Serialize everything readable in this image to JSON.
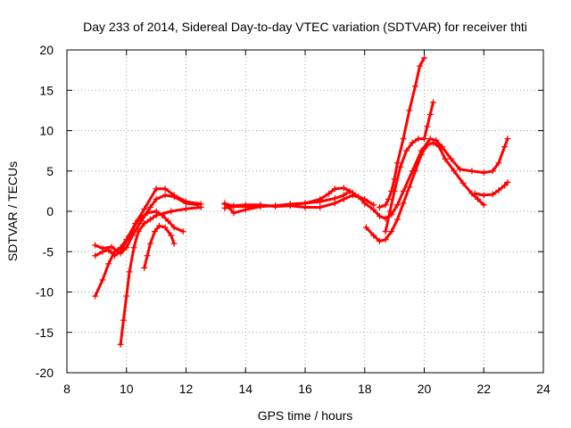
{
  "chart_data": {
    "type": "scatter",
    "title": "Day 233 of 2014, Sidereal Day-to-day VTEC variation (SDTVAR) for receiver thti",
    "xlabel": "GPS time / hours",
    "ylabel": "SDTVAR / TECUs",
    "xlim": [
      8,
      24
    ],
    "ylim": [
      -20,
      20
    ],
    "xticks": [
      "8",
      "10",
      "12",
      "14",
      "16",
      "18",
      "20",
      "22",
      "24"
    ],
    "yticks": [
      "20",
      "15",
      "10",
      "5",
      "0",
      "-5",
      "-10",
      "-15",
      "-20"
    ],
    "grid": true,
    "marker": "+",
    "color": "#ff0000",
    "series": [
      {
        "values": [
          [
            8.95,
            -4.2
          ],
          [
            9.2,
            -4.6
          ],
          [
            9.5,
            -4.4
          ],
          [
            9.8,
            -5.2
          ],
          [
            10.0,
            -4.5
          ],
          [
            10.2,
            -3.0
          ],
          [
            10.5,
            -1.2
          ],
          [
            10.8,
            0.5
          ],
          [
            11.0,
            1.5
          ],
          [
            11.3,
            2.0
          ],
          [
            11.6,
            1.8
          ],
          [
            12.0,
            1.0
          ],
          [
            12.4,
            0.8
          ]
        ]
      },
      {
        "values": [
          [
            8.95,
            -10.5
          ],
          [
            9.2,
            -8.5
          ],
          [
            9.4,
            -6.5
          ],
          [
            9.6,
            -5.0
          ],
          [
            9.8,
            -4.5
          ],
          [
            10.0,
            -3.5
          ],
          [
            10.3,
            -1.5
          ],
          [
            10.6,
            0.3
          ],
          [
            11.0,
            2.8
          ],
          [
            11.3,
            2.8
          ],
          [
            11.6,
            2.0
          ],
          [
            12.0,
            1.2
          ],
          [
            12.5,
            0.9
          ]
        ]
      },
      {
        "values": [
          [
            8.95,
            -5.5
          ],
          [
            9.2,
            -5.0
          ],
          [
            9.4,
            -4.8
          ],
          [
            9.6,
            -5.5
          ],
          [
            9.8,
            -5.0
          ],
          [
            10.1,
            -3.0
          ],
          [
            10.4,
            -1.0
          ],
          [
            10.7,
            -0.2
          ],
          [
            11.0,
            0.0
          ],
          [
            11.2,
            -0.5
          ],
          [
            11.4,
            -1.2
          ],
          [
            11.6,
            -2.0
          ],
          [
            11.9,
            -2.5
          ]
        ]
      },
      {
        "values": [
          [
            9.8,
            -16.5
          ],
          [
            9.9,
            -13.5
          ],
          [
            10.0,
            -10.5
          ],
          [
            10.1,
            -7.5
          ],
          [
            10.25,
            -4.5
          ],
          [
            10.4,
            -2.5
          ],
          [
            10.6,
            -1.5
          ],
          [
            10.8,
            -1.0
          ],
          [
            11.0,
            -0.5
          ],
          [
            11.5,
            0.0
          ],
          [
            12.0,
            0.3
          ],
          [
            12.5,
            0.5
          ]
        ]
      },
      {
        "values": [
          [
            10.6,
            -7.0
          ],
          [
            10.7,
            -5.5
          ],
          [
            10.8,
            -4.0
          ],
          [
            10.95,
            -2.5
          ],
          [
            11.1,
            -1.8
          ],
          [
            11.3,
            -2.0
          ],
          [
            11.5,
            -3.0
          ],
          [
            11.6,
            -4.0
          ]
        ]
      },
      {
        "values": [
          [
            13.3,
            0.4
          ],
          [
            13.6,
            0.6
          ],
          [
            14.0,
            0.6
          ],
          [
            14.5,
            0.7
          ],
          [
            15.0,
            0.7
          ],
          [
            15.5,
            0.9
          ],
          [
            16.0,
            1.0
          ],
          [
            16.5,
            1.5
          ],
          [
            16.8,
            2.2
          ],
          [
            17.0,
            2.8
          ],
          [
            17.3,
            2.9
          ],
          [
            17.6,
            2.3
          ],
          [
            17.8,
            1.8
          ],
          [
            18.0,
            1.0
          ],
          [
            18.3,
            0.2
          ],
          [
            18.5,
            -0.6
          ],
          [
            18.7,
            -0.9
          ],
          [
            18.9,
            -0.4
          ],
          [
            19.1,
            0.8
          ],
          [
            19.3,
            2.5
          ],
          [
            19.6,
            5.0
          ],
          [
            19.9,
            7.5
          ],
          [
            20.2,
            9.0
          ],
          [
            20.4,
            8.8
          ],
          [
            20.6,
            8.0
          ],
          [
            20.9,
            6.5
          ],
          [
            21.2,
            5.2
          ],
          [
            21.6,
            5.0
          ],
          [
            22.0,
            4.8
          ],
          [
            22.3,
            5.0
          ],
          [
            22.5,
            6.0
          ],
          [
            22.7,
            8.0
          ],
          [
            22.8,
            9.0
          ]
        ]
      },
      {
        "values": [
          [
            13.3,
            0.9
          ],
          [
            13.6,
            0.7
          ],
          [
            14.0,
            0.8
          ],
          [
            14.5,
            0.8
          ],
          [
            15.0,
            0.6
          ],
          [
            15.5,
            0.7
          ],
          [
            16.0,
            0.5
          ],
          [
            16.5,
            0.5
          ],
          [
            17.0,
            1.0
          ],
          [
            17.3,
            1.5
          ],
          [
            17.6,
            2.0
          ],
          [
            18.0,
            1.5
          ],
          [
            18.3,
            0.8
          ]
        ]
      },
      {
        "values": [
          [
            13.3,
            1.0
          ],
          [
            13.6,
            -0.2
          ],
          [
            14.0,
            0.2
          ],
          [
            14.5,
            0.6
          ],
          [
            15.0,
            0.7
          ],
          [
            15.5,
            0.8
          ],
          [
            16.0,
            1.0
          ],
          [
            16.5,
            1.2
          ],
          [
            17.0,
            1.6
          ],
          [
            17.3,
            2.0
          ],
          [
            17.5,
            2.5
          ]
        ]
      },
      {
        "values": [
          [
            18.05,
            -2.0
          ],
          [
            18.3,
            -3.0
          ],
          [
            18.5,
            -3.7
          ],
          [
            18.7,
            -3.5
          ],
          [
            18.9,
            -2.5
          ],
          [
            19.1,
            -1.0
          ],
          [
            19.3,
            1.0
          ],
          [
            19.5,
            3.0
          ],
          [
            19.7,
            5.0
          ],
          [
            19.9,
            7.0
          ],
          [
            20.1,
            8.2
          ],
          [
            20.3,
            8.5
          ],
          [
            20.5,
            8.0
          ],
          [
            20.7,
            6.5
          ],
          [
            21.0,
            5.0
          ],
          [
            21.3,
            3.5
          ],
          [
            21.6,
            2.2
          ],
          [
            21.8,
            1.5
          ],
          [
            22.0,
            0.8
          ]
        ]
      },
      {
        "values": [
          [
            18.5,
            0.5
          ],
          [
            18.7,
            0.8
          ],
          [
            18.8,
            1.5
          ],
          [
            18.9,
            2.5
          ],
          [
            19.0,
            4.0
          ],
          [
            19.1,
            6.0
          ],
          [
            19.3,
            9.0
          ],
          [
            19.5,
            12.5
          ],
          [
            19.7,
            15.5
          ],
          [
            19.85,
            18.0
          ],
          [
            20.0,
            19.0
          ]
        ]
      },
      {
        "values": [
          [
            18.7,
            -2.5
          ],
          [
            18.85,
            0.0
          ],
          [
            19.0,
            2.5
          ],
          [
            19.2,
            5.5
          ],
          [
            19.4,
            7.5
          ],
          [
            19.6,
            8.5
          ],
          [
            19.8,
            9.0
          ],
          [
            20.0,
            9.0
          ],
          [
            20.1,
            10.5
          ],
          [
            20.2,
            12.0
          ],
          [
            20.3,
            13.5
          ]
        ]
      },
      {
        "values": [
          [
            21.7,
            2.2
          ],
          [
            22.0,
            2.0
          ],
          [
            22.3,
            2.1
          ],
          [
            22.5,
            2.6
          ],
          [
            22.7,
            3.2
          ],
          [
            22.8,
            3.6
          ]
        ]
      }
    ]
  }
}
